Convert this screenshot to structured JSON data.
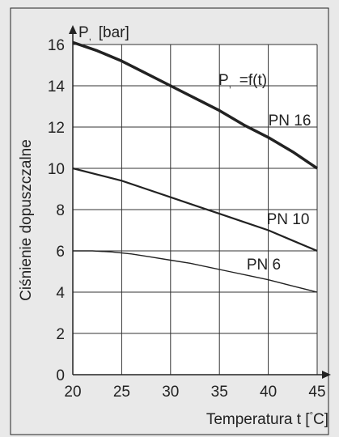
{
  "chart_data": {
    "type": "line",
    "title": "",
    "annotation": {
      "main": "P",
      "rest": "=f(t)"
    },
    "ylabel_axis": {
      "main": "P",
      "unit": "[bar]"
    },
    "ylabel_side": "Ciśnienie dopuszczalne",
    "xlabel": {
      "before": "Temperatura t [",
      "after": "C]"
    },
    "xlim": [
      20,
      45
    ],
    "ylim": [
      0,
      16
    ],
    "xticks": [
      20,
      25,
      30,
      35,
      40,
      45
    ],
    "yticks": [
      0,
      2,
      4,
      6,
      8,
      10,
      12,
      14,
      16
    ],
    "grid": true,
    "series": [
      {
        "name": "PN 16",
        "points": [
          [
            20,
            16.1
          ],
          [
            22.5,
            15.7
          ],
          [
            25,
            15.2
          ],
          [
            27.5,
            14.6
          ],
          [
            30,
            14.0
          ],
          [
            32.5,
            13.4
          ],
          [
            35,
            12.8
          ],
          [
            37.5,
            12.1
          ],
          [
            40,
            11.5
          ],
          [
            42.5,
            10.8
          ],
          [
            45,
            10.0
          ]
        ]
      },
      {
        "name": "PN 10",
        "points": [
          [
            20,
            10.0
          ],
          [
            22.5,
            9.7
          ],
          [
            25,
            9.4
          ],
          [
            27.5,
            9.0
          ],
          [
            30,
            8.6
          ],
          [
            32.5,
            8.2
          ],
          [
            35,
            7.8
          ],
          [
            37.5,
            7.4
          ],
          [
            40,
            7.0
          ],
          [
            42.5,
            6.5
          ],
          [
            45,
            6.0
          ]
        ]
      },
      {
        "name": "PN 6",
        "points": [
          [
            20,
            6.0
          ],
          [
            22,
            6.0
          ],
          [
            24,
            5.95
          ],
          [
            26,
            5.85
          ],
          [
            28,
            5.7
          ],
          [
            30,
            5.55
          ],
          [
            32,
            5.4
          ],
          [
            34,
            5.2
          ],
          [
            36,
            5.0
          ],
          [
            38,
            4.8
          ],
          [
            40,
            4.6
          ],
          [
            42.5,
            4.3
          ],
          [
            45,
            4.0
          ]
        ]
      }
    ]
  }
}
